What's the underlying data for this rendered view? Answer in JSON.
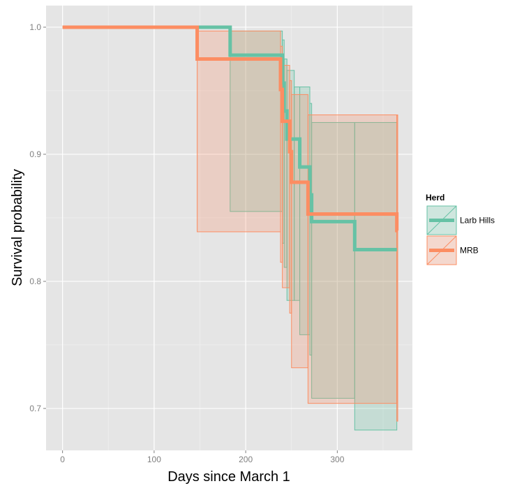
{
  "chart_data": {
    "type": "line",
    "subtype": "kaplan-meier step curves with confidence bands",
    "xlabel": "Days since March 1",
    "ylabel": "Survival probability",
    "xlim": [
      -18,
      382
    ],
    "ylim": [
      0.667,
      1.017
    ],
    "xticks": [
      0,
      100,
      200,
      300
    ],
    "xtick_labels": [
      "0",
      "100",
      "200",
      "300"
    ],
    "yticks": [
      0.7,
      0.8,
      0.9,
      1.0
    ],
    "ytick_labels": [
      "0.7",
      "0.8",
      "0.9",
      "1.0"
    ],
    "grid": true,
    "panel_background": "#e5e5e5",
    "legend": {
      "title": "Herd",
      "position": "right",
      "entries": [
        "Larb Hills",
        "MRB"
      ]
    },
    "series": [
      {
        "name": "Larb Hills",
        "color": "#66c2a5",
        "fill": "#66c2a5",
        "steps": [
          {
            "x0": 0,
            "x1": 183,
            "y": 1.0,
            "lo": 1.0,
            "hi": 1.0
          },
          {
            "x0": 183,
            "x1": 240,
            "y": 0.978,
            "lo": 0.855,
            "hi": 0.997
          },
          {
            "x0": 240,
            "x1": 242,
            "y": 0.956,
            "lo": 0.83,
            "hi": 0.99
          },
          {
            "x0": 242,
            "x1": 245,
            "y": 0.934,
            "lo": 0.811,
            "hi": 0.975
          },
          {
            "x0": 245,
            "x1": 253,
            "y": 0.912,
            "lo": 0.785,
            "hi": 0.966
          },
          {
            "x0": 253,
            "x1": 259,
            "y": 0.912,
            "lo": 0.785,
            "hi": 0.953
          },
          {
            "x0": 259,
            "x1": 270,
            "y": 0.89,
            "lo": 0.758,
            "hi": 0.953
          },
          {
            "x0": 270,
            "x1": 272,
            "y": 0.868,
            "lo": 0.742,
            "hi": 0.94
          },
          {
            "x0": 272,
            "x1": 319,
            "y": 0.847,
            "lo": 0.708,
            "hi": 0.925
          },
          {
            "x0": 319,
            "x1": 365,
            "y": 0.825,
            "lo": 0.683,
            "hi": 0.925
          }
        ]
      },
      {
        "name": "MRB",
        "color": "#fc8d62",
        "fill": "#fc8d62",
        "steps": [
          {
            "x0": 0,
            "x1": 147,
            "y": 1.0,
            "lo": 1.0,
            "hi": 1.0
          },
          {
            "x0": 147,
            "x1": 238,
            "y": 0.975,
            "lo": 0.839,
            "hi": 0.997
          },
          {
            "x0": 238,
            "x1": 240,
            "y": 0.951,
            "lo": 0.815,
            "hi": 0.985
          },
          {
            "x0": 240,
            "x1": 248,
            "y": 0.926,
            "lo": 0.795,
            "hi": 0.97
          },
          {
            "x0": 248,
            "x1": 250,
            "y": 0.902,
            "lo": 0.775,
            "hi": 0.958
          },
          {
            "x0": 250,
            "x1": 268,
            "y": 0.878,
            "lo": 0.732,
            "hi": 0.947
          },
          {
            "x0": 268,
            "x1": 365,
            "y": 0.853,
            "lo": 0.704,
            "hi": 0.931
          },
          {
            "x0": 365,
            "x1": 366,
            "y": 0.84,
            "lo": 0.69,
            "hi": 0.931
          }
        ]
      }
    ]
  }
}
